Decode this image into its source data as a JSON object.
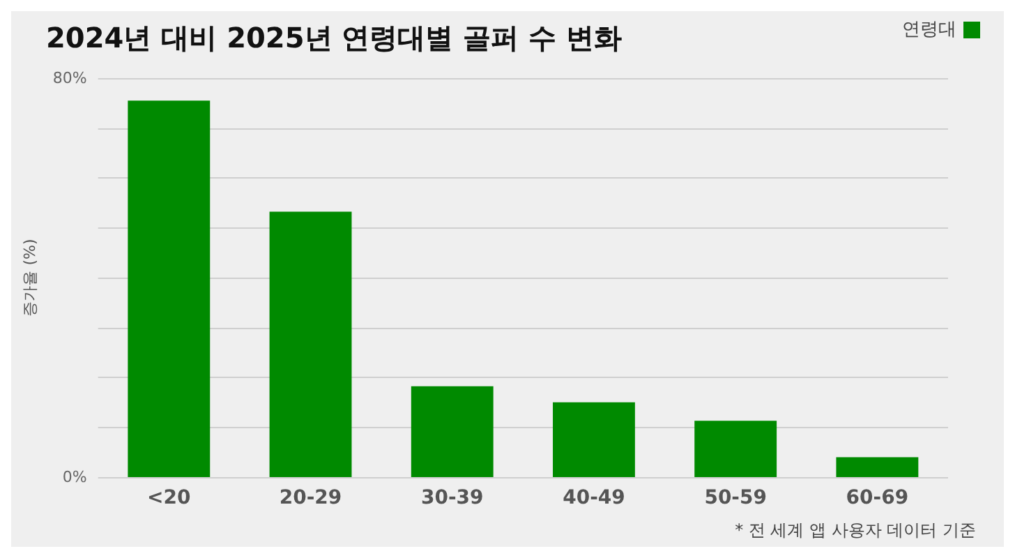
{
  "chart_data": {
    "type": "bar",
    "title": "2024년 대비 2025년 연령대별 골퍼 수 변화",
    "ylabel": "증가율 (%)",
    "categories": [
      "<20",
      "20-29",
      "30-39",
      "40-49",
      "50-59",
      "60-69"
    ],
    "series": [
      {
        "name": "연령대",
        "color": "#008a00",
        "values": [
          75.5,
          53.2,
          18.2,
          15.0,
          11.3,
          4.0
        ]
      }
    ],
    "ylim": [
      0,
      80
    ],
    "yticks": [
      {
        "value": 0,
        "label": "0%"
      },
      {
        "value": 10,
        "label": null
      },
      {
        "value": 20,
        "label": null
      },
      {
        "value": 30,
        "label": null
      },
      {
        "value": 40,
        "label": null
      },
      {
        "value": 50,
        "label": null
      },
      {
        "value": 60,
        "label": null
      },
      {
        "value": 70,
        "label": null
      },
      {
        "value": 80,
        "label": "80%"
      }
    ],
    "grid": true,
    "legend": "top right",
    "annotations": [
      "* 전 세계 앱 사용자 데이터 기준"
    ]
  }
}
